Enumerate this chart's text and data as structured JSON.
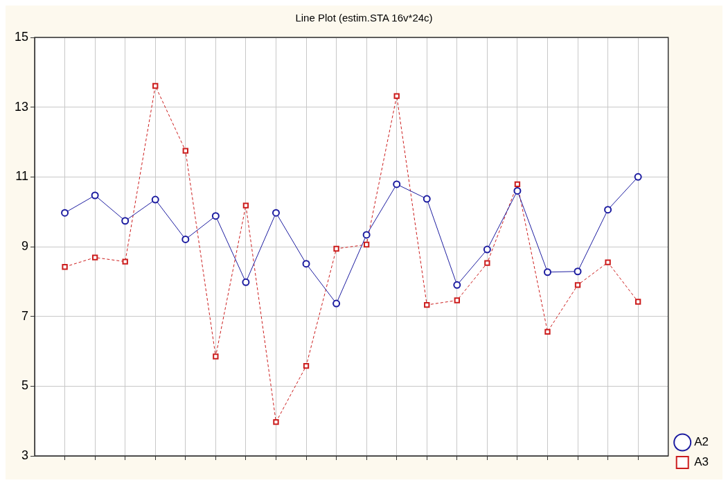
{
  "chart_data": {
    "type": "line",
    "title": "Line Plot (estim.STA 16v*24c)",
    "categories": [
      null,
      null,
      null,
      null,
      null,
      null,
      null,
      null,
      null,
      null,
      null,
      null,
      null,
      null,
      null,
      null,
      null,
      null,
      null,
      null
    ],
    "series": [
      {
        "name": "A2",
        "color": "#1c1ca0",
        "marker": "circle",
        "line_style": "solid",
        "values": [
          9.97,
          10.47,
          9.74,
          10.35,
          9.21,
          9.88,
          7.98,
          9.97,
          8.51,
          7.37,
          9.34,
          10.79,
          10.37,
          7.9,
          8.92,
          10.6,
          8.27,
          8.29,
          10.06,
          11.0
        ]
      },
      {
        "name": "A3",
        "color": "#cc1c1c",
        "marker": "square",
        "line_style": "dashed",
        "values": [
          8.42,
          8.69,
          8.57,
          13.61,
          11.75,
          5.85,
          10.18,
          3.97,
          5.58,
          8.94,
          9.06,
          13.32,
          7.33,
          7.46,
          8.53,
          10.79,
          6.56,
          7.9,
          8.55,
          7.42
        ]
      }
    ],
    "ylim": [
      3,
      15
    ],
    "yticks": [
      3,
      5,
      7,
      9,
      11,
      13,
      15
    ],
    "grid": true,
    "legend": "bottom right"
  }
}
